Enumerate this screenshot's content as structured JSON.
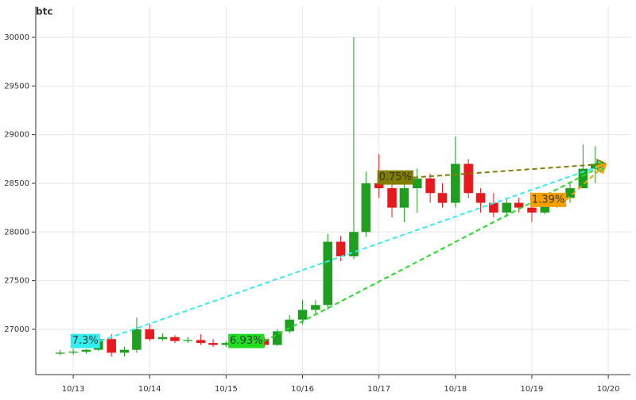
{
  "chart_data": {
    "type": "candlestick",
    "title": "btc",
    "x": [
      -0.17,
      0.0,
      0.17,
      0.33,
      0.5,
      0.67,
      0.83,
      1.0,
      1.17,
      1.33,
      1.5,
      1.67,
      1.83,
      2.0,
      2.17,
      2.33,
      2.5,
      2.67,
      2.83,
      3.0,
      3.17,
      3.33,
      3.5,
      3.67,
      3.83,
      4.0,
      4.17,
      4.33,
      4.5,
      4.67,
      4.83,
      5.0,
      5.17,
      5.33,
      5.5,
      5.67,
      5.83,
      6.0,
      6.17,
      6.33,
      6.5,
      6.67,
      6.83
    ],
    "open": [
      26750,
      26760,
      26770,
      26790,
      26900,
      26760,
      26790,
      27000,
      26900,
      26920,
      26880,
      26890,
      26860,
      26840,
      26860,
      26880,
      26900,
      26840,
      26980,
      27100,
      27200,
      27250,
      27900,
      27750,
      28000,
      28500,
      28450,
      28250,
      28450,
      28550,
      28400,
      28300,
      28700,
      28400,
      28300,
      28200,
      28300,
      28250,
      28200,
      28300,
      28350,
      28450,
      28650
    ],
    "high": [
      26790,
      26800,
      26800,
      26920,
      26950,
      26820,
      27120,
      27050,
      26960,
      26940,
      26920,
      26950,
      26900,
      26880,
      26900,
      26950,
      26920,
      27000,
      27150,
      27300,
      27300,
      27980,
      27960,
      30000,
      28620,
      28800,
      28550,
      28550,
      28650,
      28600,
      28500,
      28980,
      28750,
      28450,
      28400,
      28350,
      28350,
      28300,
      28350,
      28400,
      28500,
      28900,
      28880
    ],
    "low": [
      26730,
      26740,
      26750,
      26780,
      26720,
      26720,
      26760,
      26880,
      26880,
      26860,
      26860,
      26840,
      26820,
      26820,
      26840,
      26860,
      26820,
      26830,
      26960,
      27050,
      27150,
      27200,
      27700,
      27720,
      27950,
      28350,
      28150,
      28100,
      28200,
      28300,
      28250,
      28250,
      28350,
      28200,
      28150,
      28150,
      28200,
      28100,
      28180,
      28250,
      28300,
      28450,
      28500
    ],
    "close": [
      26760,
      26770,
      26790,
      26900,
      26760,
      26790,
      27000,
      26900,
      26920,
      26880,
      26890,
      26860,
      26840,
      26860,
      26880,
      26900,
      26840,
      26980,
      27100,
      27200,
      27250,
      27900,
      27750,
      28000,
      28500,
      28450,
      28250,
      28450,
      28550,
      28400,
      28300,
      28700,
      28400,
      28300,
      28200,
      28300,
      28250,
      28200,
      28300,
      28350,
      28450,
      28650,
      28700
    ],
    "up_color": "#1e9e1e",
    "down_color": "#e8181c",
    "xlim": [
      -0.49,
      7.29
    ],
    "xticks": [
      {
        "value": 0,
        "label": "10/13"
      },
      {
        "value": 1,
        "label": "10/14"
      },
      {
        "value": 2,
        "label": "10/15"
      },
      {
        "value": 3,
        "label": "10/16"
      },
      {
        "value": 4,
        "label": "10/17"
      },
      {
        "value": 5,
        "label": "10/18"
      },
      {
        "value": 6,
        "label": "10/19"
      },
      {
        "value": 7,
        "label": "10/20"
      }
    ],
    "ylim": [
      26535,
      30318
    ],
    "yticks": [
      27000,
      27500,
      28000,
      28500,
      29000,
      29500,
      30000
    ],
    "grid": true,
    "annotations": [
      {
        "text": "7.3%",
        "color": "#33eeee",
        "x": [
          0.35,
          6.97
        ],
        "y": [
          26880,
          28700
        ]
      },
      {
        "text": "6.93%",
        "color": "#22dd22",
        "x": [
          2.5,
          6.97
        ],
        "y": [
          26880,
          28700
        ]
      },
      {
        "text": "0.75%",
        "color": "#807d00",
        "x": [
          4.45,
          6.97
        ],
        "y": [
          28560,
          28700
        ]
      },
      {
        "text": "1.39%",
        "color": "#f5a000",
        "x": [
          6.45,
          6.97
        ],
        "y": [
          28330,
          28700
        ]
      }
    ]
  }
}
